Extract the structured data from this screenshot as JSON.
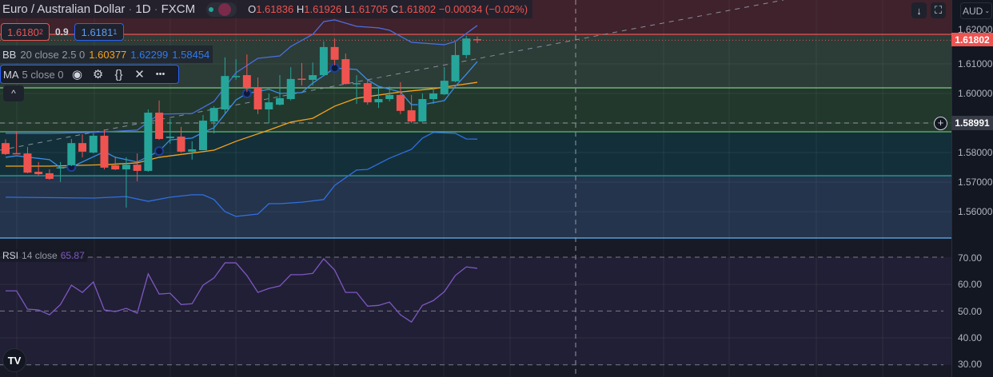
{
  "header": {
    "symbol": "Euro / Australian Dollar",
    "interval": "1D",
    "exchange": "FXCM",
    "ohlc": {
      "o_label": "O",
      "o": "1.61836",
      "h_label": "H",
      "h": "1.61926",
      "l_label": "L",
      "l": "1.61705",
      "c_label": "C",
      "c": "1.61802",
      "change": "−0.00034 (−0.02%)"
    }
  },
  "trade": {
    "sell_price": "1.6180",
    "sell_sup": "2",
    "spread": "0.9",
    "buy_price": "1.6181",
    "buy_sup": "1"
  },
  "indicators": {
    "bb": {
      "name": "BB",
      "params": "20 close 2.5 0",
      "basis": "1.60377",
      "upper": "1.62299",
      "lower": "1.58454"
    },
    "ma": {
      "name": "MA",
      "params": "5 close 0",
      "icons": [
        "eye-icon",
        "gear-icon",
        "source-code-icon",
        "close-icon",
        "more-icon"
      ]
    },
    "rsi": {
      "name": "RSI",
      "params": "14 close",
      "value": "65.87"
    }
  },
  "toolbar": {
    "scroll_icon": "↓",
    "fullscreen_icon": "⛶",
    "currency": "AUD",
    "collapse_icon": "^"
  },
  "price_axis": {
    "last_price": "1.61802",
    "crosshair_price": "1.58991",
    "ticks": [
      "1.62000",
      "1.61000",
      "1.60000",
      "1.58000",
      "1.57000",
      "1.56000"
    ],
    "rsi_ticks": [
      "70.00",
      "60.00",
      "50.00",
      "40.00",
      "30.00"
    ]
  },
  "colors": {
    "up": "#26a69a",
    "down": "#ef5350",
    "bb_basis": "#f7a21b",
    "bb_band": "#2f6fe0",
    "ma": "#3b8ee8",
    "rsi": "#7e57c2"
  },
  "chart_data": {
    "type": "candlestick",
    "ylim": [
      1.551,
      1.632
    ],
    "candles": [
      [
        1.5832,
        1.5845,
        1.5792,
        1.5795
      ],
      [
        1.5798,
        1.587,
        1.5795,
        1.5797
      ],
      [
        1.5797,
        1.5819,
        1.573,
        1.5732
      ],
      [
        1.5735,
        1.5768,
        1.5722,
        1.5727
      ],
      [
        1.573,
        1.5743,
        1.5708,
        1.5711
      ],
      [
        1.5748,
        1.5768,
        1.57,
        1.575
      ],
      [
        1.5757,
        1.5846,
        1.5754,
        1.5832
      ],
      [
        1.5832,
        1.5862,
        1.5784,
        1.5803
      ],
      [
        1.58,
        1.5865,
        1.5797,
        1.5857
      ],
      [
        1.5857,
        1.5878,
        1.5743,
        1.5749
      ],
      [
        1.5757,
        1.5786,
        1.5741,
        1.5743
      ],
      [
        1.5743,
        1.5784,
        1.5614,
        1.5759
      ],
      [
        1.5759,
        1.5797,
        1.5703,
        1.5738
      ],
      [
        1.5738,
        1.5946,
        1.5735,
        1.5935
      ],
      [
        1.5935,
        1.5976,
        1.5843,
        1.5846
      ],
      [
        1.5849,
        1.5914,
        1.583,
        1.5854
      ],
      [
        1.5854,
        1.5887,
        1.58,
        1.5803
      ],
      [
        1.5803,
        1.5838,
        1.5776,
        1.5811
      ],
      [
        1.5808,
        1.5927,
        1.5808,
        1.5908
      ],
      [
        1.5905,
        1.5957,
        1.5865,
        1.5951
      ],
      [
        1.5946,
        1.6122,
        1.5932,
        1.6059
      ],
      [
        1.6057,
        1.6116,
        1.6046,
        1.6059
      ],
      [
        1.6062,
        1.6132,
        1.6005,
        1.6019
      ],
      [
        1.6019,
        1.6054,
        1.593,
        1.5946
      ],
      [
        1.5946,
        1.6,
        1.59,
        1.597
      ],
      [
        1.5962,
        1.6062,
        1.5959,
        1.5984
      ],
      [
        1.5981,
        1.6089,
        1.5976,
        1.6049
      ],
      [
        1.605,
        1.6103,
        1.6027,
        1.6049
      ],
      [
        1.6046,
        1.6105,
        1.6027,
        1.6062
      ],
      [
        1.6062,
        1.6176,
        1.6059,
        1.6157
      ],
      [
        1.6157,
        1.6186,
        1.6095,
        1.6114
      ],
      [
        1.6116,
        1.6135,
        1.603,
        1.6032
      ],
      [
        1.6034,
        1.6062,
        1.5965,
        1.6035
      ],
      [
        1.6035,
        1.6046,
        1.5962,
        1.597
      ],
      [
        1.597,
        1.6019,
        1.5951,
        1.5981
      ],
      [
        1.5981,
        1.6024,
        1.5973,
        1.5995
      ],
      [
        1.5995,
        1.6038,
        1.593,
        1.5941
      ],
      [
        1.5943,
        1.5995,
        1.59,
        1.5905
      ],
      [
        1.5905,
        1.6,
        1.5903,
        1.5981
      ],
      [
        1.5981,
        1.6019,
        1.5965,
        1.6
      ],
      [
        1.5997,
        1.6089,
        1.5995,
        1.6043
      ],
      [
        1.6041,
        1.6173,
        1.6038,
        1.613
      ],
      [
        1.613,
        1.6195,
        1.6119,
        1.6186
      ],
      [
        1.61836,
        1.61926,
        1.61705,
        1.61802
      ]
    ],
    "bb_upper": [
      [
        0,
        1.5865
      ],
      [
        4,
        1.5865
      ],
      [
        8,
        1.5868
      ],
      [
        12,
        1.5876
      ],
      [
        14,
        1.593
      ],
      [
        17,
        1.5932
      ],
      [
        19,
        1.5973
      ],
      [
        21,
        1.607
      ],
      [
        23,
        1.6119
      ],
      [
        25,
        1.6127
      ],
      [
        26,
        1.6159
      ],
      [
        28,
        1.62
      ],
      [
        29,
        1.6243
      ],
      [
        30,
        1.6249
      ],
      [
        32,
        1.6227
      ],
      [
        34,
        1.6222
      ],
      [
        35,
        1.6214
      ],
      [
        37,
        1.6173
      ],
      [
        40,
        1.6165
      ],
      [
        41,
        1.6176
      ],
      [
        42,
        1.6203
      ],
      [
        43,
        1.62299
      ]
    ],
    "bb_basis": [
      [
        0,
        1.5754
      ],
      [
        4,
        1.5754
      ],
      [
        9,
        1.5759
      ],
      [
        12,
        1.5765
      ],
      [
        14,
        1.5784
      ],
      [
        19,
        1.5808
      ],
      [
        21,
        1.5838
      ],
      [
        24,
        1.5876
      ],
      [
        26,
        1.5903
      ],
      [
        28,
        1.5916
      ],
      [
        30,
        1.5957
      ],
      [
        32,
        1.5984
      ],
      [
        36,
        1.6005
      ],
      [
        39,
        1.6016
      ],
      [
        41,
        1.6027
      ],
      [
        43,
        1.60377
      ]
    ],
    "bb_lower": [
      [
        0,
        1.5649
      ],
      [
        8,
        1.5646
      ],
      [
        11,
        1.5651
      ],
      [
        13,
        1.5635
      ],
      [
        15,
        1.5649
      ],
      [
        17,
        1.5657
      ],
      [
        18,
        1.5657
      ],
      [
        19,
        1.5641
      ],
      [
        20,
        1.56
      ],
      [
        21,
        1.5584
      ],
      [
        23,
        1.5592
      ],
      [
        24,
        1.5627
      ],
      [
        25,
        1.5627
      ],
      [
        27,
        1.5632
      ],
      [
        29,
        1.5641
      ],
      [
        30,
        1.5689
      ],
      [
        32,
        1.5741
      ],
      [
        33,
        1.5743
      ],
      [
        35,
        1.5781
      ],
      [
        37,
        1.5811
      ],
      [
        38,
        1.5849
      ],
      [
        39,
        1.5868
      ],
      [
        41,
        1.5865
      ],
      [
        42,
        1.5846
      ],
      [
        43,
        1.58454
      ]
    ],
    "ma5": [
      [
        0,
        1.5784
      ],
      [
        1,
        1.5789
      ],
      [
        4,
        1.5776
      ],
      [
        5,
        1.5749
      ],
      [
        6,
        1.5751
      ],
      [
        9,
        1.5803
      ],
      [
        10,
        1.5784
      ],
      [
        12,
        1.5768
      ],
      [
        14,
        1.5805
      ],
      [
        15,
        1.5843
      ],
      [
        17,
        1.5849
      ],
      [
        18,
        1.5868
      ],
      [
        19,
        1.5884
      ],
      [
        21,
        1.5978
      ],
      [
        22,
        1.6
      ],
      [
        24,
        1.6014
      ],
      [
        25,
        1.6
      ],
      [
        27,
        1.6003
      ],
      [
        28,
        1.6035
      ],
      [
        30,
        1.6086
      ],
      [
        32,
        1.6081
      ],
      [
        33,
        1.6046
      ],
      [
        34,
        1.6024
      ],
      [
        36,
        1.6005
      ],
      [
        37,
        1.5962
      ],
      [
        38,
        1.5962
      ],
      [
        40,
        1.5976
      ],
      [
        41,
        1.6024
      ],
      [
        42,
        1.6065
      ],
      [
        43,
        1.6108
      ]
    ],
    "ma5_markers": [
      6,
      14,
      22,
      30,
      38
    ],
    "rsi": {
      "ylim": [
        30,
        70
      ],
      "levels": [
        70,
        50,
        30
      ],
      "values": [
        57.5,
        57.5,
        50.7,
        50.4,
        48.6,
        52.4,
        59.6,
        56.9,
        60.8,
        50.4,
        49.8,
        51.0,
        49.2,
        63.8,
        56.3,
        56.6,
        52.4,
        52.7,
        59.6,
        62.3,
        67.9,
        67.9,
        63.2,
        56.9,
        58.4,
        59.3,
        63.5,
        63.5,
        64.0,
        69.4,
        65.2,
        56.9,
        56.9,
        51.8,
        52.1,
        53.3,
        48.6,
        45.9,
        52.1,
        53.9,
        57.2,
        63.2,
        66.4,
        65.87
      ]
    }
  }
}
